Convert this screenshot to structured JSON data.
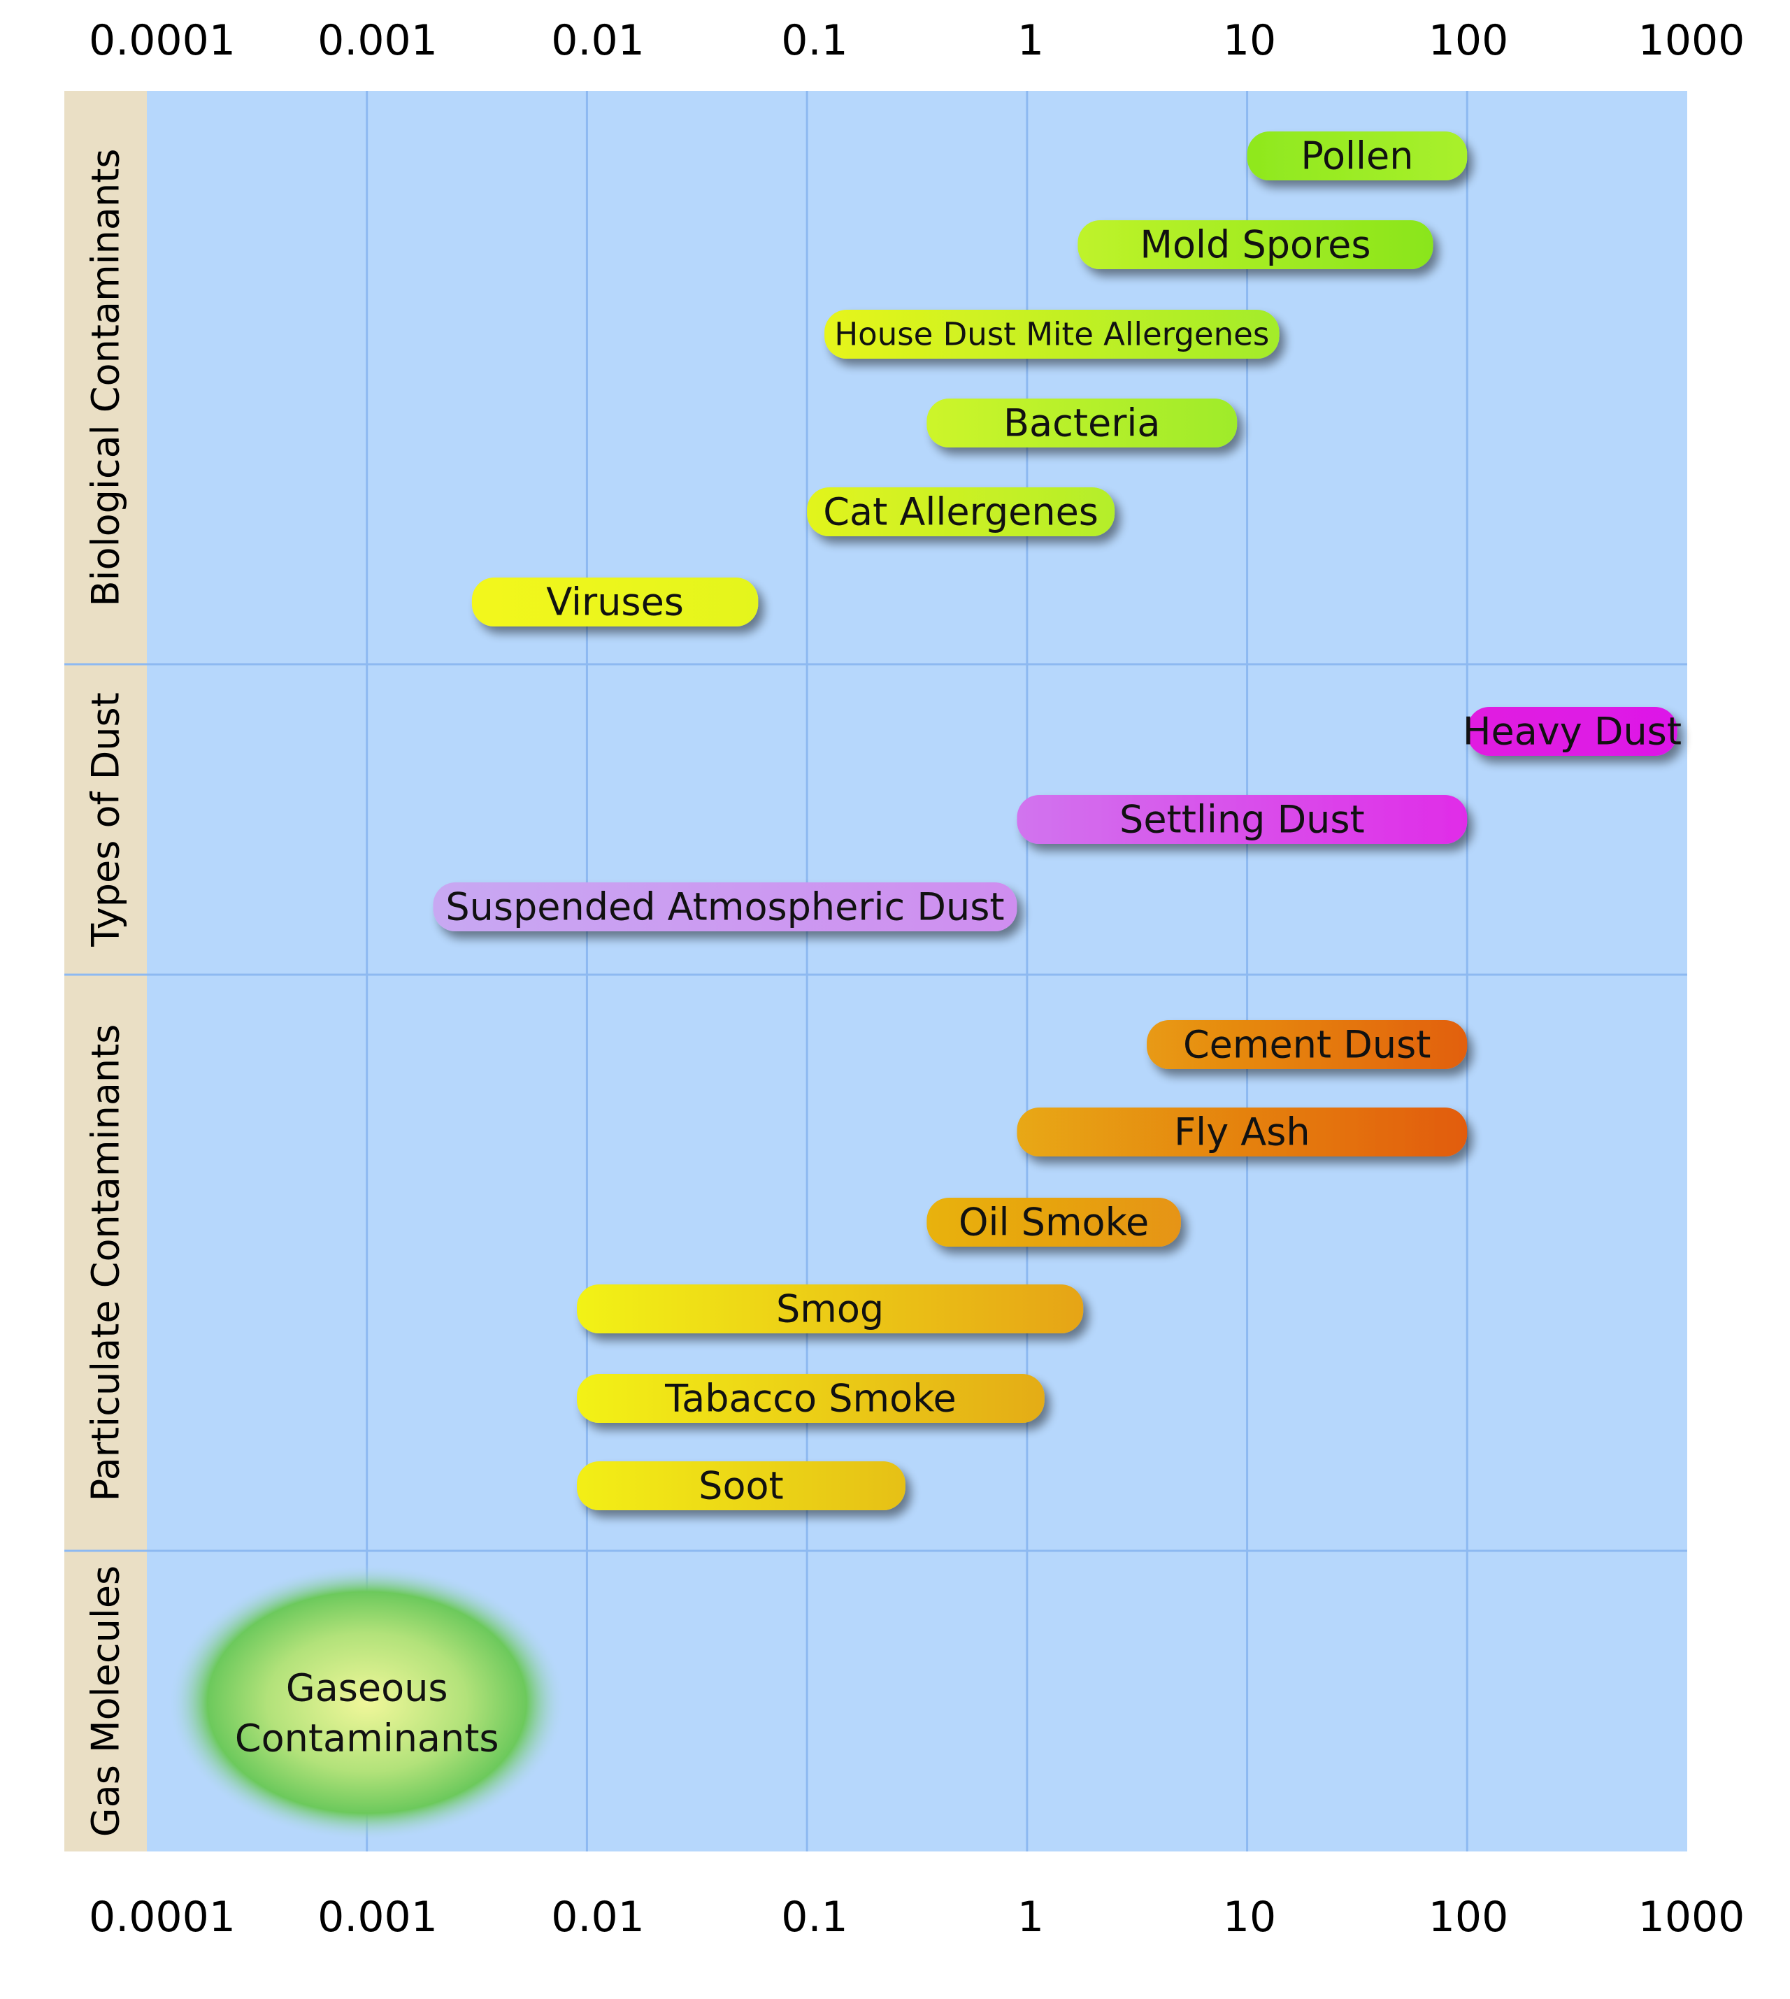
{
  "chart_data": {
    "type": "range-bar",
    "x_scale": "log",
    "xlim": [
      0.0001,
      1000
    ],
    "grid": true,
    "tick_labels": [
      "0.0001",
      "0.001",
      "0.01",
      "0.1",
      "1",
      "10",
      "100",
      "1000"
    ],
    "tick_values": [
      0.0001,
      0.001,
      0.01,
      0.1,
      1,
      10,
      100,
      1000
    ],
    "groups": [
      {
        "name": "Biological Contaminants",
        "items": [
          {
            "label": "Pollen",
            "min": 10,
            "max": 100,
            "color_start": "#8fe81e",
            "color_end": "#a9f02c"
          },
          {
            "label": "Mold Spores",
            "min": 1.7,
            "max": 70,
            "color_start": "#bff32a",
            "color_end": "#8ae51c"
          },
          {
            "label": "House Dust Mite Allergenes",
            "min": 0.12,
            "max": 14,
            "color_start": "#e6f51c",
            "color_end": "#a3ec2a"
          },
          {
            "label": "Bacteria",
            "min": 0.35,
            "max": 9,
            "color_start": "#cdf52a",
            "color_end": "#9feb2c"
          },
          {
            "label": "Cat Allergenes",
            "min": 0.1,
            "max": 2.5,
            "color_start": "#e2f41e",
            "color_end": "#b4ee2a"
          },
          {
            "label": "Viruses",
            "min": 0.003,
            "max": 0.06,
            "color_start": "#f3f71a",
            "color_end": "#e4f51e"
          }
        ]
      },
      {
        "name": "Types of Dust",
        "items": [
          {
            "label": "Heavy Dust",
            "min": 100,
            "max": 900,
            "color_start": "#e01ee0",
            "color_end": "#dd18e8"
          },
          {
            "label": "Settling Dust",
            "min": 0.9,
            "max": 100,
            "color_start": "#d174ee",
            "color_end": "#e02ce8"
          },
          {
            "label": "Suspended Atmospheric Dust",
            "min": 0.002,
            "max": 0.9,
            "color_start": "#c8a8f2",
            "color_end": "#cf8ef0"
          }
        ]
      },
      {
        "name": "Particulate Contaminants",
        "items": [
          {
            "label": "Cement Dust",
            "min": 3.5,
            "max": 100,
            "color_start": "#e89a12",
            "color_end": "#e2600e"
          },
          {
            "label": "Fly Ash",
            "min": 0.9,
            "max": 100,
            "color_start": "#e8a812",
            "color_end": "#e25c10"
          },
          {
            "label": "Oil Smoke",
            "min": 0.35,
            "max": 5,
            "color_start": "#e8b210",
            "color_end": "#e69412"
          },
          {
            "label": "Smog",
            "min": 0.009,
            "max": 1.8,
            "color_start": "#f2f215",
            "color_end": "#e6a412"
          },
          {
            "label": "Tabacco Smoke",
            "min": 0.009,
            "max": 1.2,
            "color_start": "#f3f215",
            "color_end": "#e4ac12"
          },
          {
            "label": "Soot",
            "min": 0.009,
            "max": 0.28,
            "color_start": "#f3ef15",
            "color_end": "#e6c012"
          }
        ]
      },
      {
        "name": "Gas Molecules",
        "items": [
          {
            "label_lines": [
              "Gaseous",
              "Contaminants"
            ],
            "center": 0.001,
            "shape": "ellipse",
            "color_center": "#f0f79a",
            "color_edge": "#6cc95c"
          }
        ]
      }
    ],
    "colors": {
      "plot_background": "#b6d7fc",
      "grid": "#8db9f1",
      "side_band": "#eadfc5"
    }
  }
}
